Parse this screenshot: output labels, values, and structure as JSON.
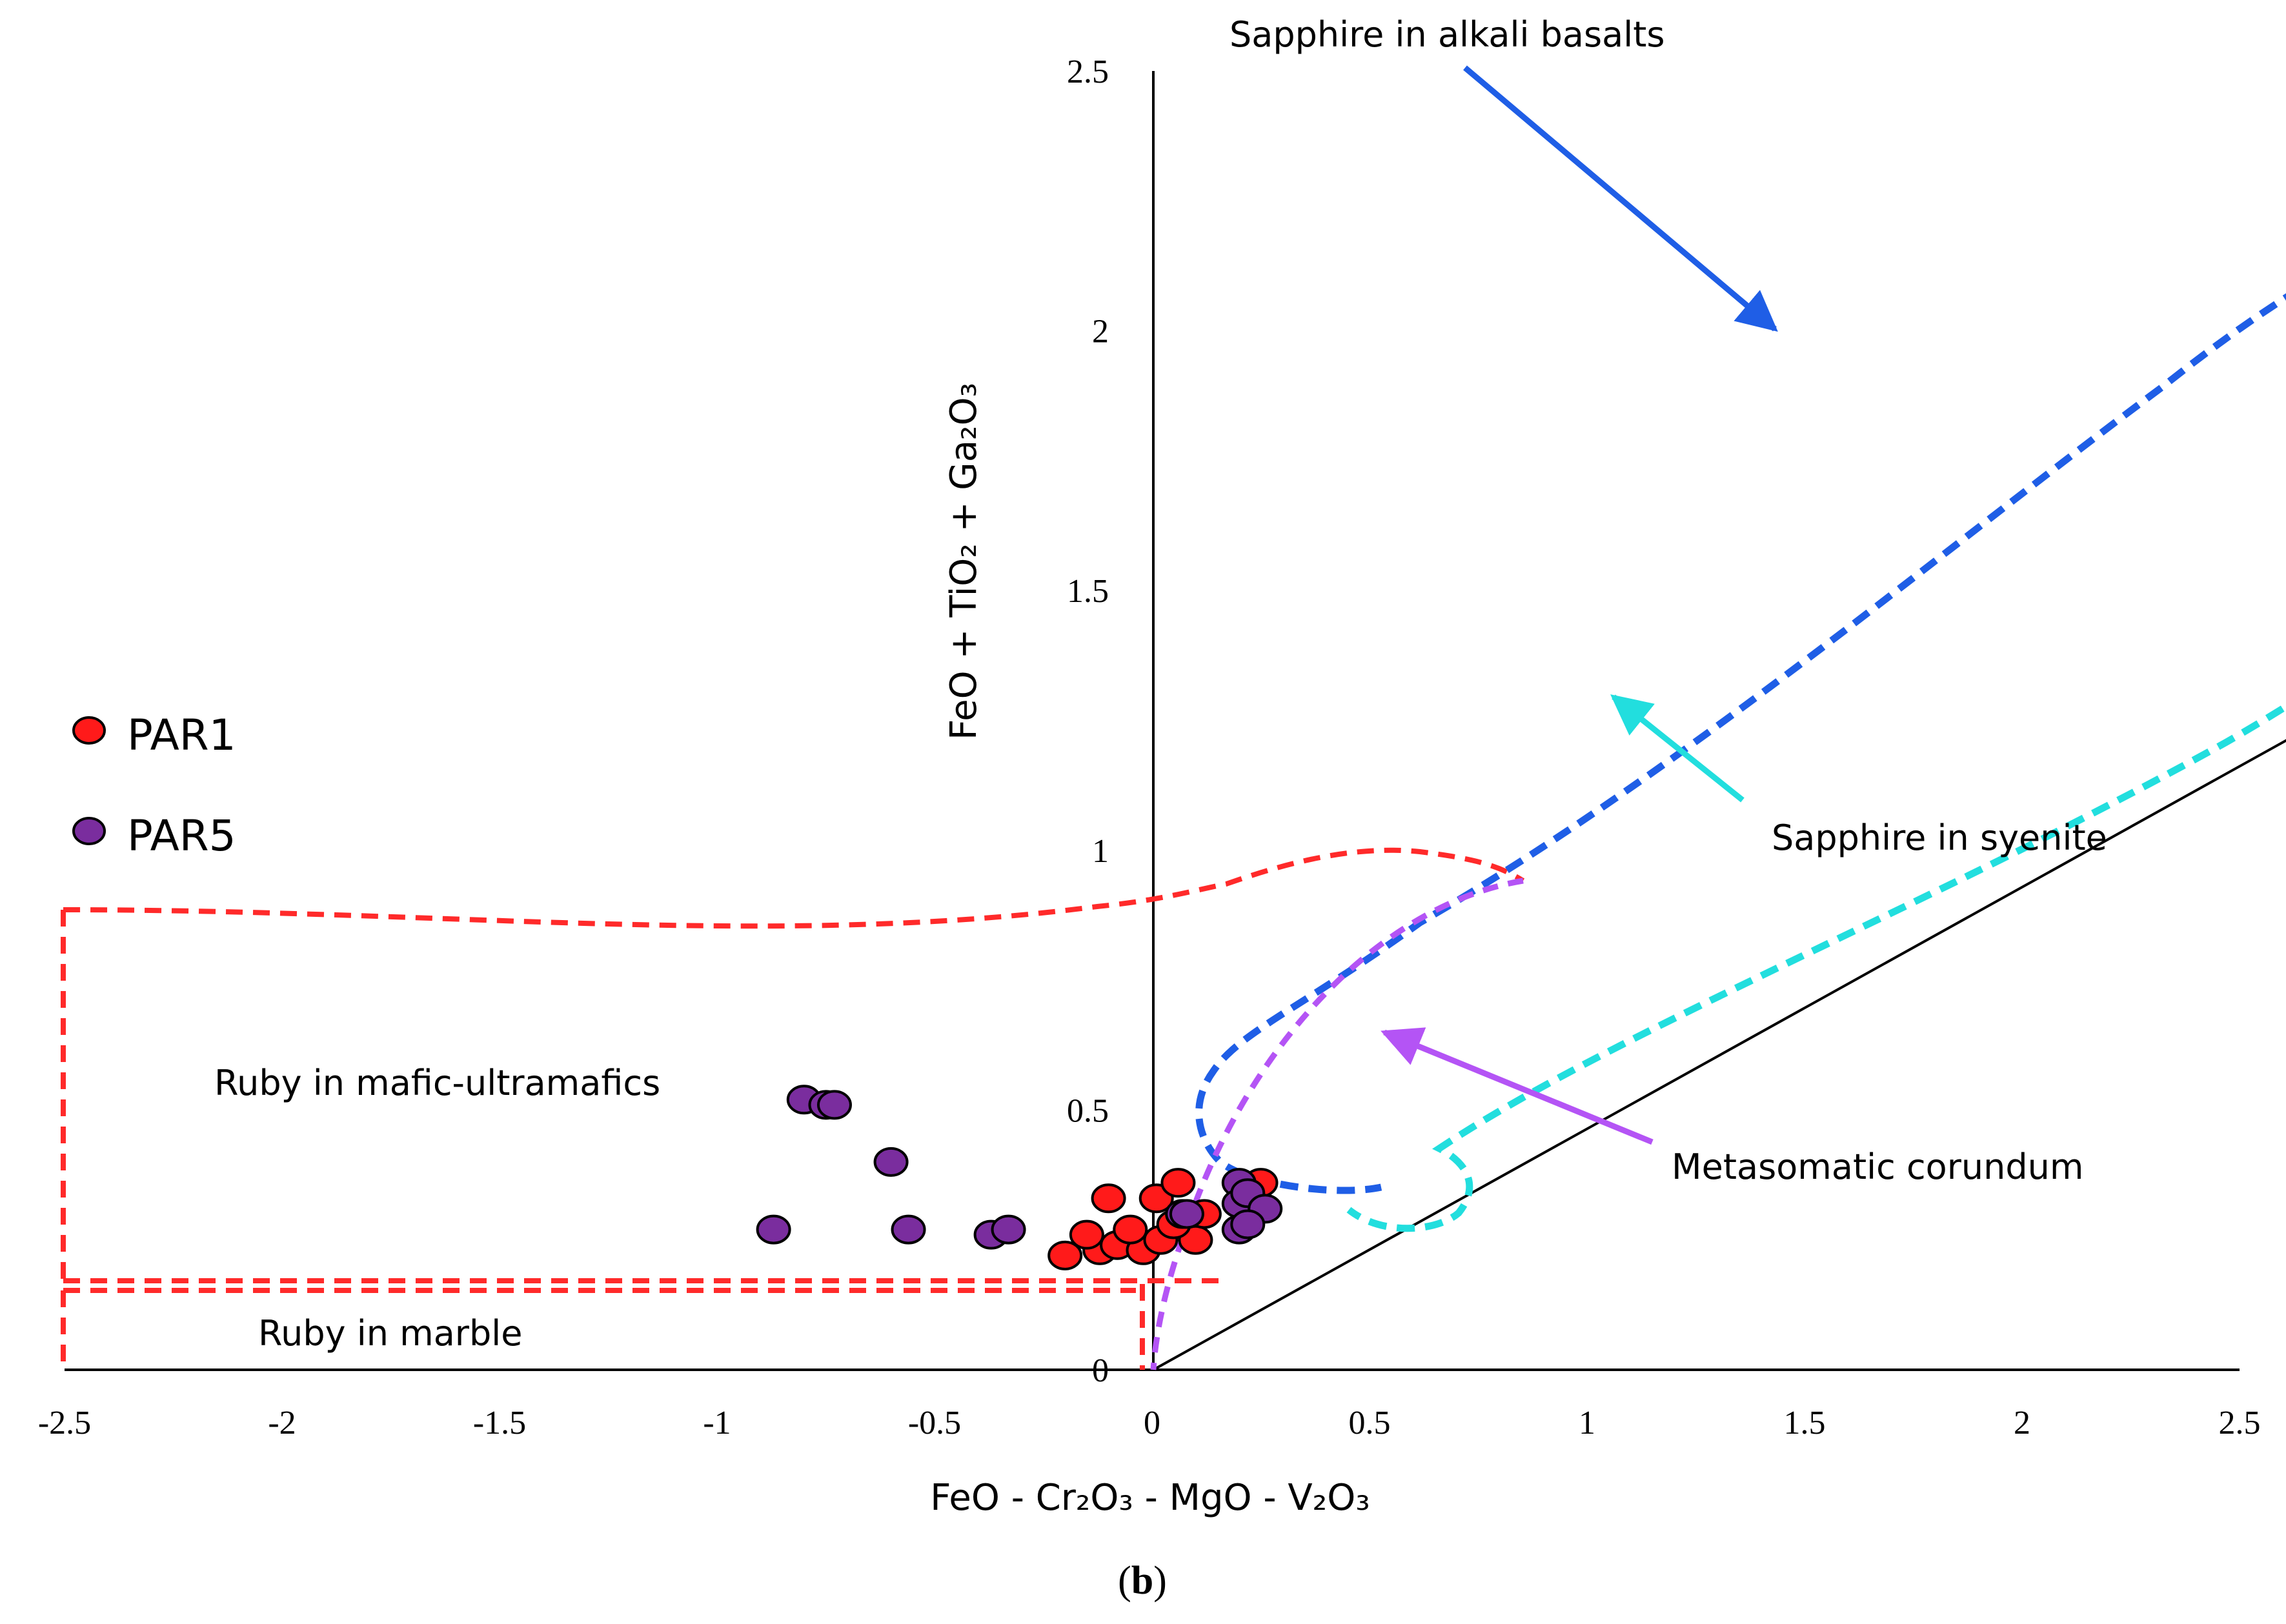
{
  "chart_data": {
    "type": "scatter",
    "title": "",
    "xlabel": "FeO - Cr₂O₃ - MgO - V₂O₃",
    "ylabel": "FeO + TiO₂ + Ga₂O₃",
    "xlim": [
      -2.5,
      2.5
    ],
    "ylim": [
      0,
      2.5
    ],
    "x_ticks": [
      "-2.5",
      "-2",
      "-1.5",
      "-1",
      "-0.5",
      "0",
      "0.5",
      "1",
      "1.5",
      "2",
      "2.5"
    ],
    "y_ticks": [
      "0",
      "0.5",
      "1",
      "1.5",
      "2",
      "2.5"
    ],
    "panel_label": "(b)",
    "panel_letter": "b",
    "legend": {
      "position": "left",
      "entries": [
        "PAR1",
        "PAR5"
      ]
    },
    "colors": {
      "PAR1": "#ff1a1a",
      "PAR5": "#7a2d9e",
      "marble_field": "#ff2a2a",
      "basalt_field": "#1f5ee6",
      "syenite_field": "#22dede",
      "metasomatic_field": "#b454f5"
    },
    "series": [
      {
        "name": "PAR1",
        "points": [
          [
            -0.2,
            0.22
          ],
          [
            -0.12,
            0.23
          ],
          [
            -0.08,
            0.24
          ],
          [
            -0.02,
            0.23
          ],
          [
            0.02,
            0.25
          ],
          [
            0.1,
            0.25
          ],
          [
            -0.15,
            0.26
          ],
          [
            -0.05,
            0.27
          ],
          [
            0.05,
            0.28
          ],
          [
            -0.1,
            0.33
          ],
          [
            0.01,
            0.33
          ],
          [
            0.06,
            0.36
          ],
          [
            0.25,
            0.36
          ],
          [
            0.12,
            0.3
          ]
        ]
      },
      {
        "name": "PAR5",
        "points": [
          [
            -0.8,
            0.52
          ],
          [
            -0.75,
            0.51
          ],
          [
            -0.73,
            0.51
          ],
          [
            -0.6,
            0.4
          ],
          [
            -0.87,
            0.27
          ],
          [
            -0.56,
            0.27
          ],
          [
            -0.37,
            0.26
          ],
          [
            -0.33,
            0.27
          ],
          [
            0.07,
            0.3
          ],
          [
            0.08,
            0.3
          ],
          [
            0.2,
            0.36
          ],
          [
            0.2,
            0.32
          ],
          [
            0.22,
            0.34
          ],
          [
            0.26,
            0.31
          ],
          [
            0.2,
            0.27
          ],
          [
            0.22,
            0.28
          ]
        ]
      }
    ],
    "fields": [
      {
        "name": "Ruby in marble",
        "label": "Ruby in marble"
      },
      {
        "name": "Ruby in mafic-ultramafics",
        "label": "Ruby in mafic-ultramafics"
      },
      {
        "name": "Sapphire in alkali basalts",
        "label": "Sapphire in alkali basalts"
      },
      {
        "name": "Sapphire in syenite",
        "label": "Sapphire in syenite"
      },
      {
        "name": "Metasomatic corundum",
        "label": "Metasomatic corundum"
      }
    ]
  }
}
